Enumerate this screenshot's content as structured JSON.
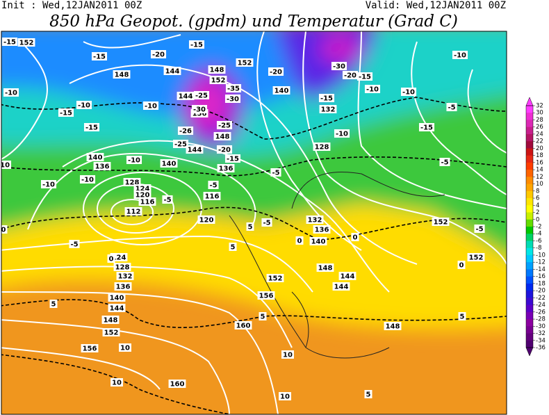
{
  "header": {
    "init": "Init : Wed,12JAN2011 00Z",
    "valid": "Valid: Wed,12JAN2011 00Z",
    "title": "850 hPa Geopot. (gpdm) und Temperatur (Grad C)"
  },
  "map": {
    "geopotential_labels": [
      152,
      148,
      144,
      152,
      148,
      152,
      144,
      156,
      148,
      144,
      140,
      136,
      140,
      132,
      128,
      140,
      136,
      128,
      124,
      120,
      116,
      112,
      116,
      120,
      124,
      128,
      132,
      136,
      140,
      144,
      148,
      152,
      156,
      160,
      160,
      156,
      152,
      148,
      144,
      140,
      136,
      132,
      148,
      152,
      152,
      144
    ],
    "temperature_labels": [
      -15,
      -15,
      -20,
      -15,
      -20,
      -30,
      -20,
      -15,
      -10,
      -10,
      -15,
      -10,
      -15,
      -10,
      -5,
      -10,
      -10,
      -15,
      -10,
      -15,
      -25,
      -35,
      -30,
      -30,
      -25,
      -26,
      -25,
      -20,
      -15,
      -10,
      -10,
      -10,
      -5,
      -5,
      -5,
      -5,
      5,
      5,
      -5,
      0,
      0,
      -5,
      0,
      5,
      10,
      10,
      5,
      10,
      10,
      5,
      5,
      -5,
      0,
      0,
      -10
    ]
  },
  "colorbar": {
    "ticks": [
      32,
      30,
      28,
      26,
      24,
      22,
      20,
      18,
      16,
      14,
      12,
      10,
      8,
      6,
      4,
      2,
      0,
      -2,
      -4,
      -6,
      -8,
      -10,
      -12,
      -14,
      -16,
      -18,
      -20,
      -22,
      -24,
      -26,
      -28,
      -30,
      -32,
      -34,
      -36
    ],
    "colors": [
      "#ff3cff",
      "#ee2ed2",
      "#dc28b4",
      "#c81e8c",
      "#b41464",
      "#a00a3c",
      "#cc1414",
      "#e62814",
      "#ff3c00",
      "#ff6400",
      "#ff8c00",
      "#ffa500",
      "#ffc800",
      "#ffe600",
      "#ffff00",
      "#c8f000",
      "#64dc00",
      "#00c800",
      "#00d264",
      "#00dcb4",
      "#00e6e6",
      "#00c8ff",
      "#00a0ff",
      "#0078ff",
      "#0050ff",
      "#0028f0",
      "#1e14dc",
      "#3c0ad2",
      "#5a00c8",
      "#7800b4",
      "#8c00a0",
      "#780090",
      "#64007d",
      "#500070"
    ]
  }
}
